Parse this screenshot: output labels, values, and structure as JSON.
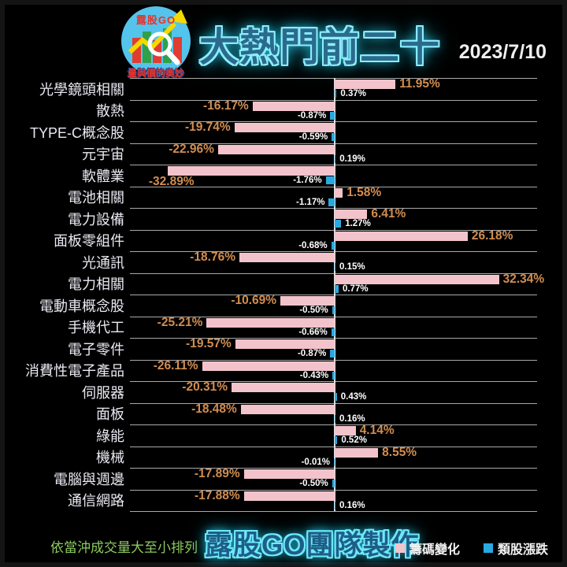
{
  "header": {
    "title": "大熱門前二十",
    "date": "2023/7/10",
    "logo": {
      "brand": "露股GO",
      "tagline": "量與價的奧妙"
    }
  },
  "chart_data": {
    "type": "bar",
    "orientation": "horizontal",
    "title": "大熱門前二十",
    "xlabel": "",
    "ylabel": "",
    "xlim": [
      -40.3,
      39.8
    ],
    "grid": "horizontal-row-separators",
    "legend_position": "bottom-right",
    "value_suffix": "%",
    "categories": [
      "光學鏡頭相關",
      "散熱",
      "TYPE-C概念股",
      "元宇宙",
      "軟體業",
      "電池相關",
      "電力設備",
      "面板零組件",
      "光通訊",
      "電力相關",
      "電動車概念股",
      "手機代工",
      "電子零件",
      "消費性電子產品",
      "伺服器",
      "面板",
      "綠能",
      "機械",
      "電腦與週邊",
      "通信網路"
    ],
    "series": [
      {
        "name": "籌碼變化",
        "color": "#f3c3cb",
        "label_color": "#d28d50",
        "values": [
          11.95,
          -16.17,
          -19.74,
          -22.96,
          -32.89,
          1.58,
          6.41,
          26.18,
          -18.76,
          32.34,
          -10.69,
          -25.21,
          -19.57,
          -26.11,
          -20.31,
          -18.48,
          4.14,
          8.55,
          -17.89,
          -17.88
        ]
      },
      {
        "name": "類股漲跌",
        "color": "#29a9e1",
        "label_color": "#ffffff",
        "values": [
          0.37,
          -0.87,
          -0.59,
          0.19,
          -1.76,
          -1.17,
          1.27,
          -0.68,
          0.15,
          0.77,
          -0.5,
          -0.66,
          -0.87,
          -0.43,
          0.43,
          0.16,
          0.52,
          -0.01,
          -0.5,
          0.16
        ]
      }
    ]
  },
  "footer": {
    "note": "依當沖成交量大至小排列",
    "credit": "露股GO團隊製作"
  }
}
